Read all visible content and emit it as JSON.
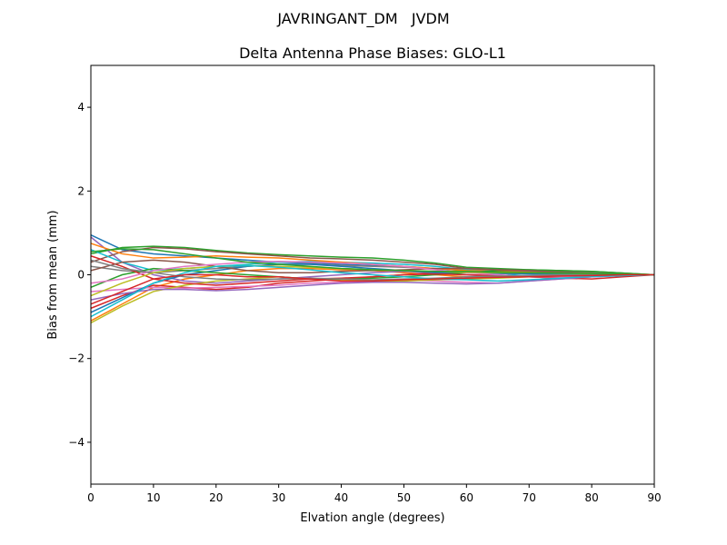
{
  "chart_data": {
    "type": "line",
    "suptitle": "JAVRINGANT_DM   JVDM",
    "title": "Delta Antenna Phase Biases: GLO-L1",
    "xlabel": "Elvation angle (degrees)",
    "ylabel": "Bias from mean (mm)",
    "xlim": [
      0,
      90
    ],
    "ylim": [
      -5,
      5
    ],
    "xticks": [
      0,
      10,
      20,
      30,
      40,
      50,
      60,
      70,
      80,
      90
    ],
    "yticks": [
      {
        "value": -4,
        "label": "−4"
      },
      {
        "value": -2,
        "label": "−2"
      },
      0,
      2,
      4
    ],
    "grid": false,
    "x": [
      0,
      5,
      10,
      15,
      20,
      25,
      30,
      35,
      40,
      45,
      50,
      55,
      60,
      65,
      70,
      75,
      80,
      85,
      90
    ],
    "series": [
      {
        "color": "#1f77b4",
        "values": [
          0.95,
          0.6,
          0.5,
          0.45,
          0.4,
          0.35,
          0.3,
          0.28,
          0.25,
          0.22,
          0.2,
          0.15,
          0.1,
          0.08,
          0.05,
          0.03,
          0.02,
          0.01,
          0
        ]
      },
      {
        "color": "#ff7f0e",
        "values": [
          -1.1,
          -0.7,
          -0.3,
          -0.1,
          0.0,
          0.1,
          0.15,
          0.15,
          0.12,
          0.1,
          0.05,
          0.0,
          -0.05,
          -0.05,
          -0.03,
          -0.02,
          -0.01,
          0,
          0
        ]
      },
      {
        "color": "#2ca02c",
        "values": [
          0.5,
          0.65,
          0.68,
          0.65,
          0.58,
          0.52,
          0.48,
          0.45,
          0.42,
          0.4,
          0.35,
          0.28,
          0.18,
          0.15,
          0.12,
          0.1,
          0.08,
          0.04,
          0
        ]
      },
      {
        "color": "#d62728",
        "values": [
          -0.8,
          -0.5,
          -0.25,
          -0.3,
          -0.35,
          -0.3,
          -0.2,
          -0.15,
          -0.1,
          -0.05,
          0.0,
          0.05,
          0.1,
          0.1,
          0.08,
          0.05,
          0.03,
          0.01,
          0
        ]
      },
      {
        "color": "#9467bd",
        "values": [
          0.9,
          0.3,
          0.0,
          -0.15,
          -0.2,
          -0.15,
          -0.1,
          -0.05,
          0.0,
          0.05,
          0.08,
          0.05,
          0.0,
          -0.05,
          -0.05,
          -0.03,
          -0.02,
          0,
          0
        ]
      },
      {
        "color": "#8c564b",
        "values": [
          0.3,
          0.55,
          0.65,
          0.62,
          0.55,
          0.5,
          0.45,
          0.4,
          0.38,
          0.35,
          0.3,
          0.25,
          0.15,
          0.12,
          0.1,
          0.08,
          0.05,
          0.02,
          0
        ]
      },
      {
        "color": "#e377c2",
        "values": [
          -0.4,
          -0.35,
          -0.3,
          -0.32,
          -0.3,
          -0.28,
          -0.25,
          -0.2,
          -0.18,
          -0.15,
          -0.12,
          -0.15,
          -0.18,
          -0.2,
          -0.15,
          -0.1,
          -0.05,
          -0.02,
          0
        ]
      },
      {
        "color": "#7f7f7f",
        "values": [
          0.2,
          0.1,
          0.05,
          0.1,
          0.15,
          0.2,
          0.25,
          0.25,
          0.22,
          0.2,
          0.18,
          0.15,
          0.12,
          0.1,
          0.08,
          0.06,
          0.04,
          0.02,
          0
        ]
      },
      {
        "color": "#bcbd22",
        "values": [
          -1.15,
          -0.75,
          -0.4,
          -0.25,
          -0.15,
          -0.1,
          -0.05,
          -0.1,
          -0.12,
          -0.15,
          -0.15,
          -0.12,
          -0.1,
          -0.08,
          -0.05,
          -0.03,
          -0.02,
          0,
          0
        ]
      },
      {
        "color": "#17becf",
        "values": [
          0.6,
          0.3,
          0.1,
          0.15,
          0.2,
          0.25,
          0.3,
          0.32,
          0.3,
          0.28,
          0.25,
          0.2,
          0.12,
          0.05,
          -0.05,
          -0.08,
          -0.05,
          -0.02,
          0
        ]
      },
      {
        "color": "#1f77b4",
        "values": [
          -0.9,
          -0.55,
          -0.2,
          0.0,
          0.1,
          0.2,
          0.25,
          0.25,
          0.2,
          0.15,
          0.1,
          0.05,
          0.05,
          0.03,
          0.02,
          0.02,
          0.01,
          0,
          0
        ]
      },
      {
        "color": "#ff7f0e",
        "values": [
          0.75,
          0.5,
          0.4,
          0.42,
          0.45,
          0.42,
          0.4,
          0.35,
          0.3,
          0.25,
          0.2,
          0.15,
          0.1,
          0.08,
          0.06,
          0.04,
          0.02,
          0.01,
          0
        ]
      },
      {
        "color": "#2ca02c",
        "values": [
          -0.3,
          0.0,
          0.15,
          0.1,
          0.05,
          0.0,
          -0.05,
          -0.1,
          -0.1,
          -0.08,
          -0.05,
          0.0,
          0.05,
          0.1,
          0.12,
          0.1,
          0.08,
          0.04,
          0
        ]
      },
      {
        "color": "#d62728",
        "values": [
          0.45,
          0.2,
          -0.1,
          -0.2,
          -0.25,
          -0.2,
          -0.15,
          -0.1,
          -0.08,
          -0.05,
          0.0,
          0.02,
          0.0,
          -0.02,
          -0.05,
          -0.08,
          -0.1,
          -0.05,
          0
        ]
      },
      {
        "color": "#9467bd",
        "values": [
          -0.6,
          -0.45,
          -0.35,
          -0.35,
          -0.38,
          -0.35,
          -0.3,
          -0.25,
          -0.2,
          -0.18,
          -0.18,
          -0.2,
          -0.22,
          -0.2,
          -0.15,
          -0.1,
          -0.05,
          -0.02,
          0
        ]
      },
      {
        "color": "#8c564b",
        "values": [
          0.1,
          0.3,
          0.35,
          0.3,
          0.2,
          0.1,
          0.05,
          0.05,
          0.08,
          0.1,
          0.12,
          0.15,
          0.15,
          0.12,
          0.1,
          0.06,
          0.03,
          0.01,
          0
        ]
      },
      {
        "color": "#e377c2",
        "values": [
          -0.2,
          -0.1,
          0.1,
          0.2,
          0.25,
          0.3,
          0.32,
          0.3,
          0.28,
          0.25,
          0.2,
          0.12,
          0.05,
          0.0,
          -0.05,
          -0.05,
          -0.03,
          -0.01,
          0
        ]
      },
      {
        "color": "#7f7f7f",
        "values": [
          0.35,
          0.15,
          0.05,
          -0.05,
          -0.1,
          -0.12,
          -0.1,
          -0.08,
          -0.1,
          -0.12,
          -0.1,
          -0.08,
          -0.05,
          -0.03,
          -0.02,
          0.0,
          0.02,
          0.01,
          0
        ]
      },
      {
        "color": "#bcbd22",
        "values": [
          -0.5,
          -0.2,
          0.05,
          0.15,
          0.2,
          0.22,
          0.2,
          0.18,
          0.15,
          0.12,
          0.1,
          0.08,
          0.06,
          0.05,
          0.05,
          0.04,
          0.03,
          0.01,
          0
        ]
      },
      {
        "color": "#17becf",
        "values": [
          -1.0,
          -0.6,
          -0.2,
          0.05,
          0.2,
          0.22,
          0.18,
          0.12,
          0.05,
          0.0,
          -0.05,
          -0.1,
          -0.12,
          -0.15,
          -0.12,
          -0.08,
          -0.04,
          -0.02,
          0
        ]
      },
      {
        "color": "#2ca02c",
        "values": [
          0.55,
          0.62,
          0.6,
          0.5,
          0.4,
          0.3,
          0.25,
          0.2,
          0.15,
          0.12,
          0.1,
          0.08,
          0.08,
          0.06,
          0.05,
          0.04,
          0.03,
          0.01,
          0
        ]
      },
      {
        "color": "#d62728",
        "values": [
          -0.7,
          -0.4,
          -0.1,
          0.0,
          0.0,
          -0.05,
          -0.05,
          -0.1,
          -0.15,
          -0.15,
          -0.12,
          -0.1,
          -0.08,
          -0.06,
          -0.05,
          -0.03,
          -0.02,
          0,
          0
        ]
      }
    ]
  }
}
